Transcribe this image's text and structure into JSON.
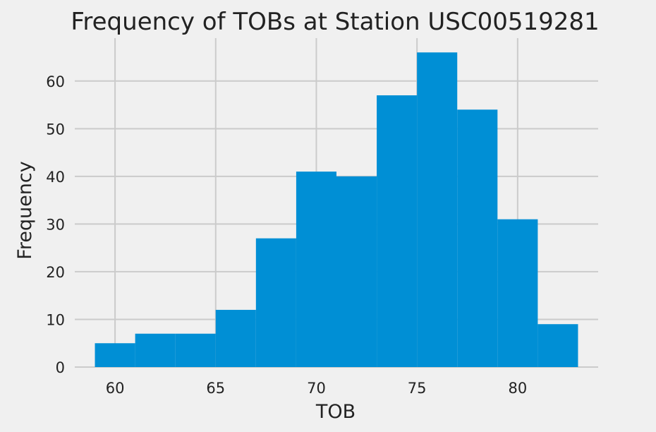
{
  "chart_data": {
    "type": "bar",
    "title": "Frequency of TOBs at Station USC00519281",
    "xlabel": "TOB",
    "ylabel": "Frequency",
    "bin_edges": [
      59,
      61,
      63,
      65,
      67,
      69,
      71,
      73,
      75,
      77,
      79,
      81,
      83
    ],
    "values": [
      5,
      7,
      7,
      12,
      27,
      41,
      40,
      57,
      66,
      54,
      31,
      9
    ],
    "xlim": [
      58,
      84
    ],
    "ylim": [
      0,
      69
    ],
    "x_ticks": [
      60,
      65,
      70,
      75,
      80
    ],
    "y_ticks": [
      0,
      10,
      20,
      30,
      40,
      50,
      60
    ],
    "grid": true,
    "bar_color": "#008fd5",
    "background_color": "#f0f0f0",
    "grid_color": "#cbcbcb"
  }
}
